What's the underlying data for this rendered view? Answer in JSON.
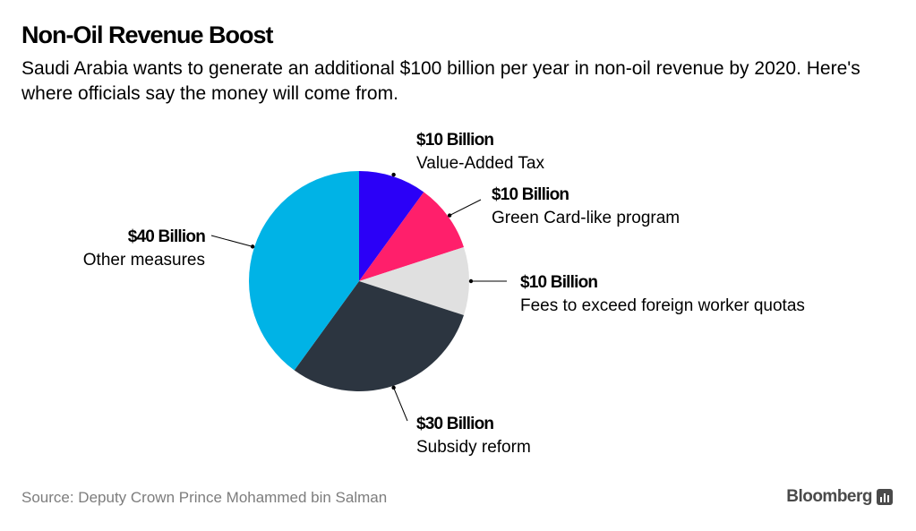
{
  "header": {
    "title": "Non-Oil Revenue Boost",
    "subtitle": "Saudi Arabia wants to generate an additional $100 billion per year in non-oil revenue by 2020. Here's where officials say the money will come from."
  },
  "footer": {
    "source": "Source: Deputy Crown Prince Mohammed bin Salman",
    "brand": "Bloomberg",
    "brand_icon": "bar-chart-icon"
  },
  "chart_data": {
    "type": "pie",
    "title": "Non-Oil Revenue Boost",
    "unit": "billion USD",
    "slices": [
      {
        "value_label": "$10 Billion",
        "label": "Value-Added Tax",
        "value": 10,
        "color": "#2b00f7"
      },
      {
        "value_label": "$10 Billion",
        "label": "Green Card-like program",
        "value": 10,
        "color": "#ff1f6b"
      },
      {
        "value_label": "$10 Billion",
        "label": "Fees to exceed foreign worker quotas",
        "value": 10,
        "color": "#e0e0e0"
      },
      {
        "value_label": "$30 Billion",
        "label": "Subsidy reform",
        "value": 30,
        "color": "#2c3540"
      },
      {
        "value_label": "$40 Billion",
        "label": "Other measures",
        "value": 40,
        "color": "#00b3e6"
      }
    ]
  }
}
